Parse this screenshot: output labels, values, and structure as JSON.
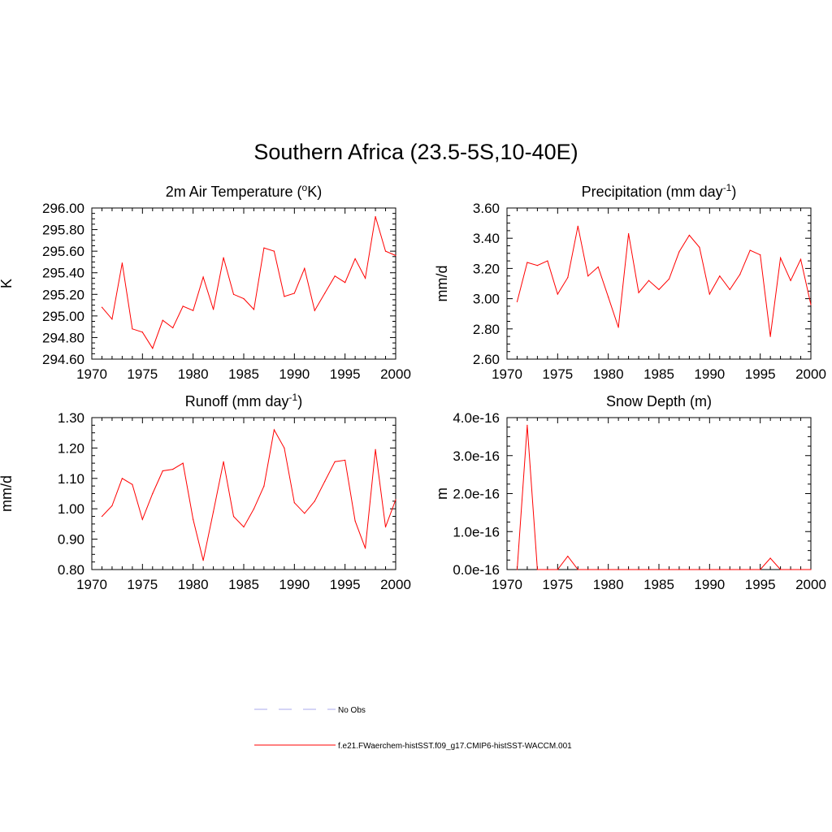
{
  "main_title": "Southern Africa (23.5-5S,10-40E)",
  "colors": {
    "series": "#ff0000",
    "no_obs": "#aaaaee",
    "axis": "#000000"
  },
  "legend": [
    {
      "label": "No Obs",
      "style": "dashed",
      "color": "#aaaaee"
    },
    {
      "label": "f.e21.FWaerchem-histSST.f09_g17.CMIP6-histSST-WACCM.001",
      "style": "solid",
      "color": "#ff0000"
    }
  ],
  "chart_data": [
    {
      "type": "line",
      "title": "2m Air Temperature (",
      "title_sup": "o",
      "title_after": "K)",
      "ylabel": "K",
      "xlim": [
        1970,
        2000
      ],
      "ylim": [
        294.6,
        296.0
      ],
      "xticks": [
        "1970",
        "1975",
        "1980",
        "1985",
        "1990",
        "1995",
        "2000"
      ],
      "yticks": [
        "294.60",
        "294.80",
        "295.00",
        "295.20",
        "295.40",
        "295.60",
        "295.80",
        "296.00"
      ],
      "x": [
        1971,
        1972,
        1973,
        1974,
        1975,
        1976,
        1977,
        1978,
        1979,
        1980,
        1981,
        1982,
        1983,
        1984,
        1985,
        1986,
        1987,
        1988,
        1989,
        1990,
        1991,
        1992,
        1993,
        1994,
        1995,
        1996,
        1997,
        1998,
        1999,
        2000
      ],
      "values": [
        295.08,
        294.97,
        295.49,
        294.88,
        294.85,
        294.7,
        294.96,
        294.89,
        295.09,
        295.05,
        295.36,
        295.06,
        295.54,
        295.2,
        295.16,
        295.06,
        295.63,
        295.6,
        295.18,
        295.21,
        295.44,
        295.05,
        295.21,
        295.37,
        295.31,
        295.53,
        295.35,
        295.92,
        295.6,
        295.56
      ]
    },
    {
      "type": "line",
      "title": "Precipitation (mm day",
      "title_sup": "-1",
      "title_after": ")",
      "ylabel": "mm/d",
      "xlim": [
        1970,
        2000
      ],
      "ylim": [
        2.6,
        3.6
      ],
      "xticks": [
        "1970",
        "1975",
        "1980",
        "1985",
        "1990",
        "1995",
        "2000"
      ],
      "yticks": [
        "2.60",
        "2.80",
        "3.00",
        "3.20",
        "3.40",
        "3.60"
      ],
      "x": [
        1971,
        1972,
        1973,
        1974,
        1975,
        1976,
        1977,
        1978,
        1979,
        1980,
        1981,
        1982,
        1983,
        1984,
        1985,
        1986,
        1987,
        1988,
        1989,
        1990,
        1991,
        1992,
        1993,
        1994,
        1995,
        1996,
        1997,
        1998,
        1999,
        2000
      ],
      "values": [
        2.98,
        3.24,
        3.22,
        3.25,
        3.03,
        3.14,
        3.48,
        3.15,
        3.21,
        3.01,
        2.81,
        3.43,
        3.04,
        3.12,
        3.06,
        3.13,
        3.31,
        3.42,
        3.34,
        3.03,
        3.15,
        3.06,
        3.16,
        3.32,
        3.29,
        2.75,
        3.27,
        3.12,
        3.26,
        2.96
      ]
    },
    {
      "type": "line",
      "title": "Runoff (mm day",
      "title_sup": "-1",
      "title_after": ")",
      "ylabel": "mm/d",
      "xlim": [
        1970,
        2000
      ],
      "ylim": [
        0.8,
        1.3
      ],
      "xticks": [
        "1970",
        "1975",
        "1980",
        "1985",
        "1990",
        "1995",
        "2000"
      ],
      "yticks": [
        "0.80",
        "0.90",
        "1.00",
        "1.10",
        "1.20",
        "1.30"
      ],
      "x": [
        1971,
        1972,
        1973,
        1974,
        1975,
        1976,
        1977,
        1978,
        1979,
        1980,
        1981,
        1982,
        1983,
        1984,
        1985,
        1986,
        1987,
        1988,
        1989,
        1990,
        1991,
        1992,
        1993,
        1994,
        1995,
        1996,
        1997,
        1998,
        1999,
        2000
      ],
      "values": [
        0.975,
        1.01,
        1.1,
        1.08,
        0.965,
        1.05,
        1.125,
        1.13,
        1.15,
        0.965,
        0.83,
        0.99,
        1.155,
        0.975,
        0.94,
        1.0,
        1.075,
        1.26,
        1.2,
        1.02,
        0.985,
        1.025,
        1.09,
        1.155,
        1.16,
        0.96,
        0.87,
        1.195,
        0.94,
        1.03
      ]
    },
    {
      "type": "line",
      "title": "Snow Depth (m)",
      "title_sup": "",
      "title_after": "",
      "ylabel": "m",
      "xlim": [
        1970,
        2000
      ],
      "ylim": [
        0,
        4e-16
      ],
      "xticks": [
        "1970",
        "1975",
        "1980",
        "1985",
        "1990",
        "1995",
        "2000"
      ],
      "yticks": [
        "0.0e-16",
        "1.0e-16",
        "2.0e-16",
        "3.0e-16",
        "4.0e-16"
      ],
      "x": [
        1971,
        1972,
        1973,
        1974,
        1975,
        1976,
        1977,
        1978,
        1979,
        1980,
        1981,
        1982,
        1983,
        1984,
        1985,
        1986,
        1987,
        1988,
        1989,
        1990,
        1991,
        1992,
        1993,
        1994,
        1995,
        1996,
        1997,
        1998,
        1999,
        2000
      ],
      "values": [
        0,
        3.8e-16,
        0,
        0,
        0,
        3.5e-17,
        0,
        0,
        0,
        0,
        0,
        0,
        0,
        0,
        0,
        0,
        0,
        0,
        0,
        0,
        0,
        0,
        0,
        0,
        0,
        3e-17,
        0,
        0,
        0,
        0
      ]
    }
  ]
}
